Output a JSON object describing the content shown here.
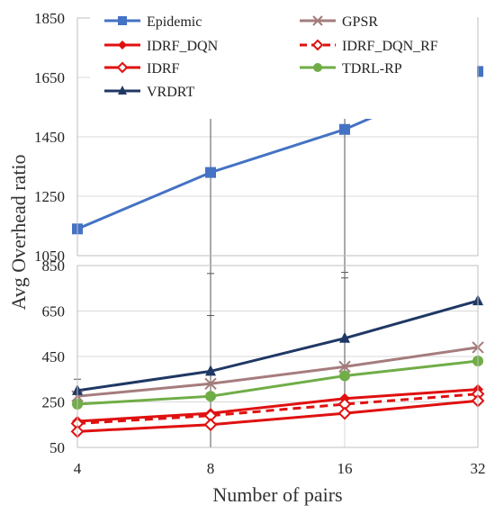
{
  "chart_data": {
    "type": "line",
    "title": "",
    "xlabel": "Number of pairs",
    "ylabel": "Avg Overhead ratio",
    "categories": [
      "4",
      "8",
      "16",
      "32"
    ],
    "yticks": [
      50,
      250,
      450,
      650,
      850,
      1050,
      1250,
      1450,
      1650,
      1850
    ],
    "ylim": [
      50,
      1850
    ],
    "y_break": [
      850,
      1050
    ],
    "grid": true,
    "legend_position": "top",
    "series": [
      {
        "name": "Epidemic",
        "color": "#4472C4",
        "marker": "square",
        "dash": "solid",
        "values": [
          1140,
          1330,
          1475,
          1670
        ],
        "error": [
          0,
          700,
          500,
          0
        ]
      },
      {
        "name": "GPSR",
        "color": "#A57C7C",
        "marker": "x",
        "dash": "solid",
        "values": [
          275,
          330,
          405,
          490
        ],
        "error": [
          0,
          0,
          0,
          0
        ]
      },
      {
        "name": "IDRF_DQN",
        "color": "#E01010",
        "marker": "diamond-filled",
        "dash": "solid",
        "values": [
          165,
          200,
          265,
          305
        ],
        "error": [
          0,
          0,
          0,
          0
        ]
      },
      {
        "name": "IDRF_DQN_RF",
        "color": "#E01010",
        "marker": "diamond-open",
        "dash": "dashed",
        "values": [
          155,
          190,
          240,
          285
        ],
        "error": [
          0,
          0,
          0,
          0
        ]
      },
      {
        "name": "IDRF",
        "color": "#E01010",
        "marker": "diamond-open",
        "dash": "solid",
        "values": [
          120,
          150,
          200,
          255
        ],
        "error": [
          0,
          0,
          0,
          0
        ]
      },
      {
        "name": "TDRL-RP",
        "color": "#70AD47",
        "marker": "circle",
        "dash": "solid",
        "values": [
          240,
          275,
          365,
          430
        ],
        "error": [
          0,
          0,
          0,
          0
        ]
      },
      {
        "name": "VRDRT",
        "color": "#1F3864",
        "marker": "triangle",
        "dash": "solid",
        "values": [
          300,
          385,
          530,
          695
        ],
        "error": [
          50,
          430,
          290,
          0
        ]
      }
    ]
  }
}
